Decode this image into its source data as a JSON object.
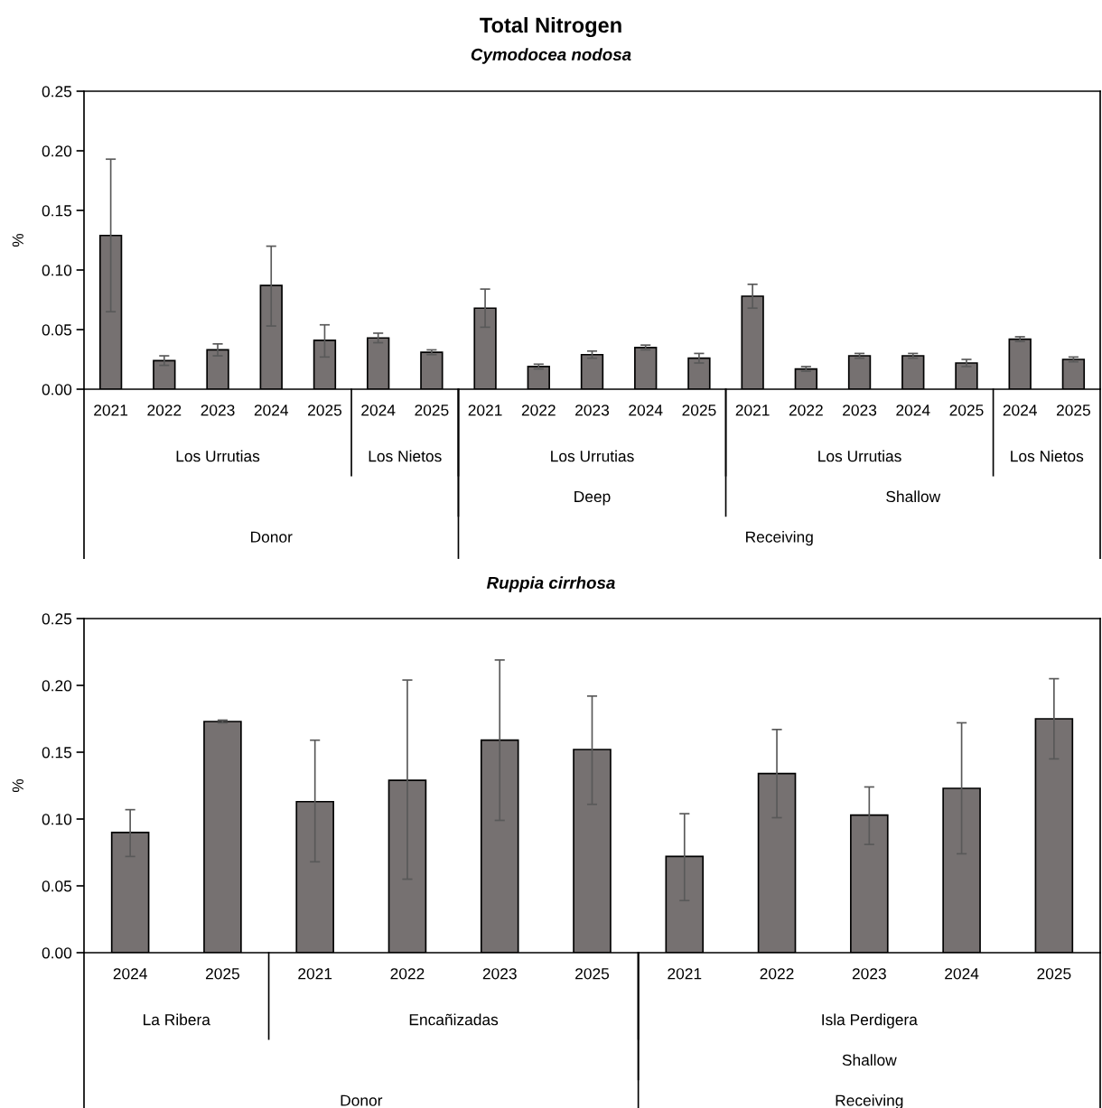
{
  "chart_data": [
    {
      "type": "bar",
      "title": "Total Nitrogen",
      "subtitle": "Cymodocea nodosa",
      "ylabel": "%",
      "color": "#767171",
      "grid": false,
      "categories": [
        "2021",
        "2022",
        "2023",
        "2024",
        "2025",
        "2024",
        "2025",
        "2021",
        "2022",
        "2023",
        "2024",
        "2025",
        "2021",
        "2022",
        "2023",
        "2024",
        "2025",
        "2024",
        "2025"
      ],
      "values": [
        0.129,
        0.024,
        0.033,
        0.087,
        0.041,
        0.043,
        0.031,
        0.068,
        0.019,
        0.029,
        0.035,
        0.026,
        0.078,
        0.017,
        0.028,
        0.028,
        0.022,
        0.042,
        0.025
      ],
      "errors": [
        [
          0.065,
          0.193
        ],
        0.004,
        0.005,
        [
          0.053,
          0.12
        ],
        [
          0.027,
          0.054
        ],
        0.004,
        0.002,
        [
          0.052,
          0.084
        ],
        0.002,
        0.003,
        0.002,
        0.004,
        [
          0.068,
          0.088
        ],
        0.002,
        0.002,
        0.002,
        0.003,
        0.002,
        0.002
      ],
      "ylim": [
        0,
        0.25
      ],
      "yticks": [
        {
          "value": 0,
          "label": "0.00"
        },
        {
          "value": 0.05,
          "label": "0.05"
        },
        {
          "value": 0.1,
          "label": "0.10"
        },
        {
          "value": 0.15,
          "label": "0.15"
        },
        {
          "value": 0.2,
          "label": "0.20"
        },
        {
          "value": 0.25,
          "label": "0.25"
        }
      ],
      "annotations": [
        "Los Urrutias",
        "Los Nietos",
        "Los Urrutias",
        "Los Urrutias",
        "Los Nietos",
        "Deep",
        "Shallow",
        "Donor",
        "Receiving"
      ]
    },
    {
      "type": "bar",
      "title": "Ruppia cirrhosa",
      "ylabel": "%",
      "color": "#767171",
      "grid": false,
      "categories": [
        "2024",
        "2025",
        "2021",
        "2022",
        "2023",
        "2025",
        "2021",
        "2022",
        "2023",
        "2024",
        "2025"
      ],
      "values": [
        0.09,
        0.173,
        0.113,
        0.129,
        0.159,
        0.152,
        0.072,
        0.134,
        0.103,
        0.123,
        0.175
      ],
      "errors": [
        [
          0.072,
          0.107
        ],
        0.001,
        [
          0.068,
          0.159
        ],
        [
          0.055,
          0.204
        ],
        [
          0.099,
          0.219
        ],
        [
          0.111,
          0.192
        ],
        [
          0.039,
          0.104
        ],
        [
          0.101,
          0.167
        ],
        [
          0.081,
          0.124
        ],
        [
          0.074,
          0.172
        ],
        [
          0.145,
          0.205
        ]
      ],
      "ylim": [
        0,
        0.25
      ],
      "yticks": [
        {
          "value": 0,
          "label": "0.00"
        },
        {
          "value": 0.05,
          "label": "0.05"
        },
        {
          "value": 0.1,
          "label": "0.10"
        },
        {
          "value": 0.15,
          "label": "0.15"
        },
        {
          "value": 0.2,
          "label": "0.20"
        },
        {
          "value": 0.25,
          "label": "0.25"
        }
      ],
      "annotations": [
        "La Ribera",
        "Encañizadas",
        "Isla Perdigera",
        "Shallow",
        "Donor",
        "Receiving"
      ]
    }
  ]
}
